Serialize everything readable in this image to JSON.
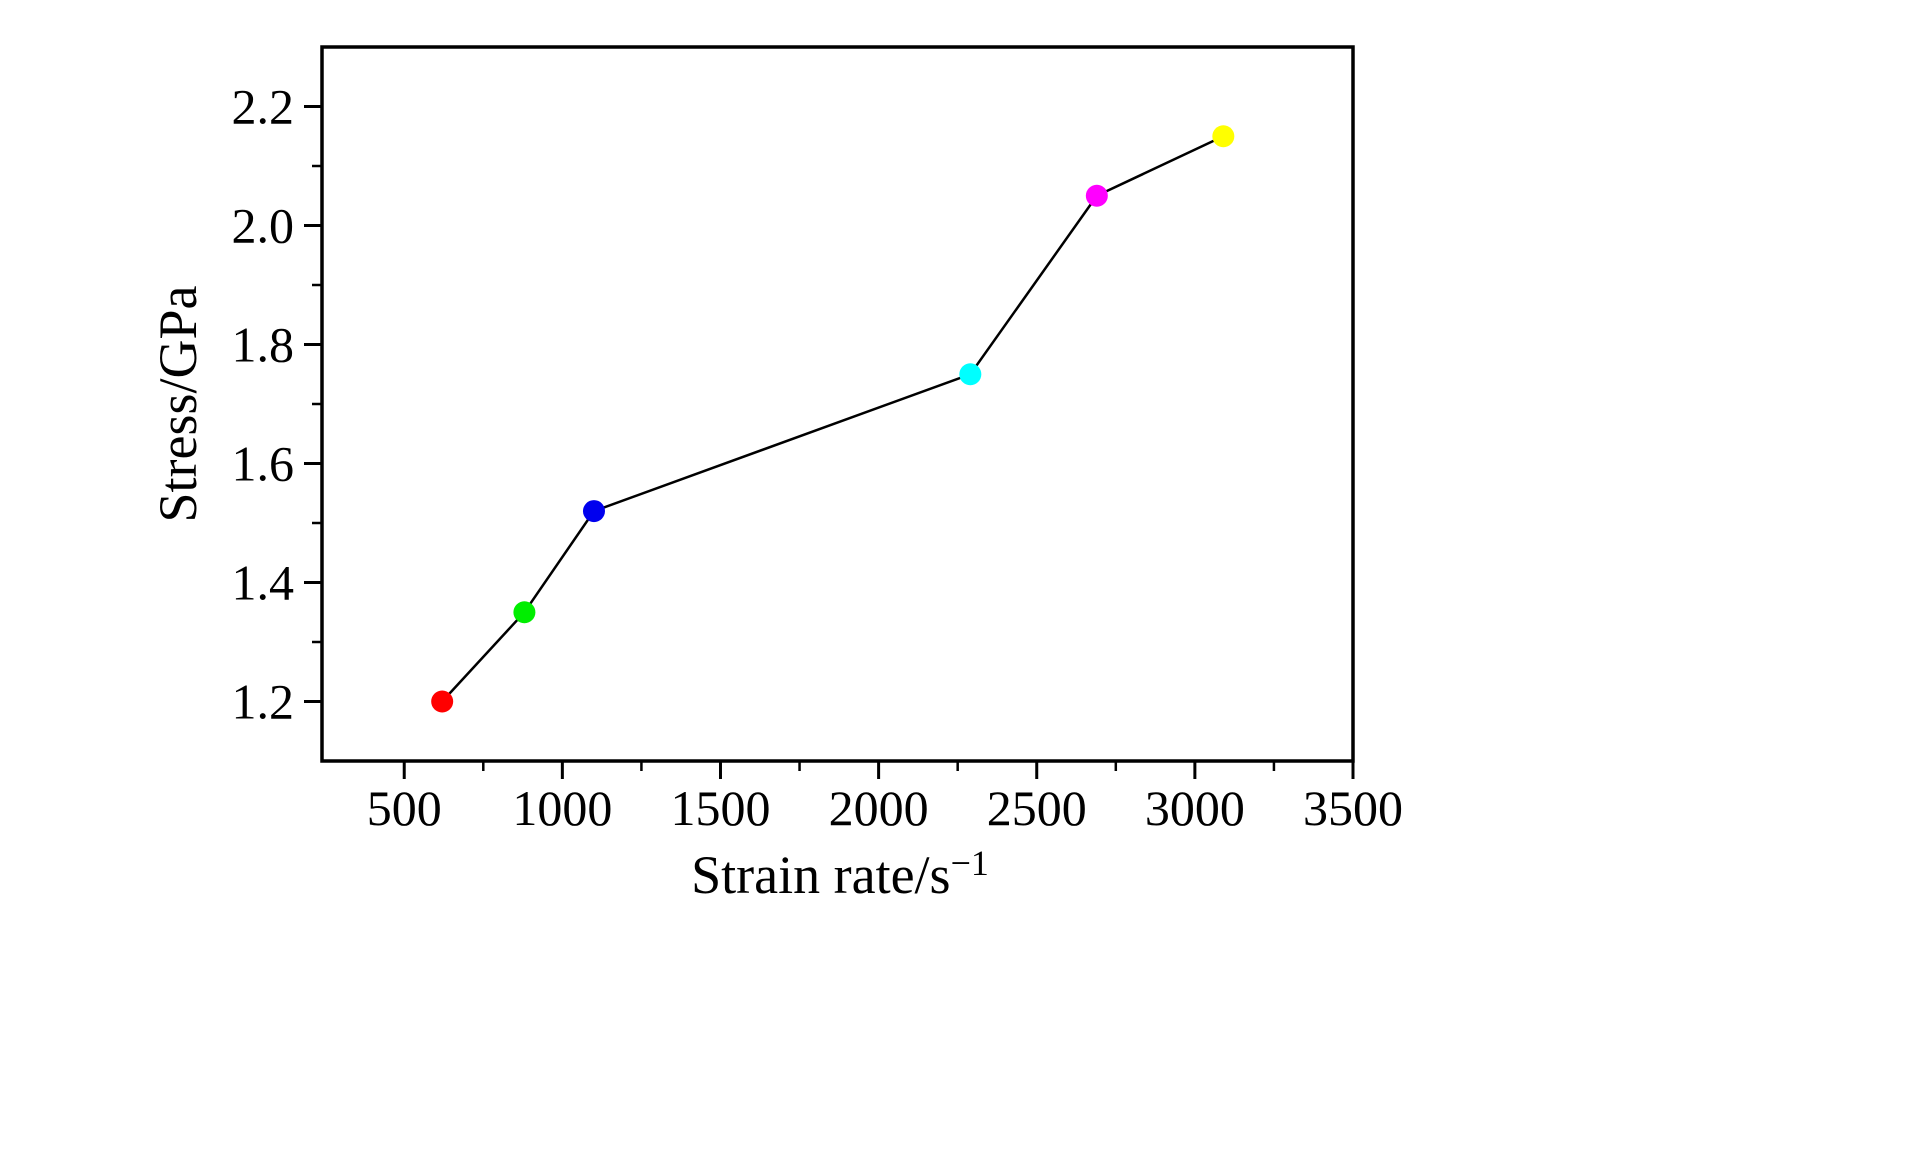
{
  "chart_data": {
    "type": "line",
    "title": "",
    "xlabel": "Strain rate/s⁻¹",
    "xlabel_base": "Strain rate/s",
    "xlabel_sup": "−1",
    "ylabel": "Stress/GPa",
    "xlim": [
      240,
      3500
    ],
    "ylim": [
      1.1,
      2.3
    ],
    "grid": false,
    "legend": "none",
    "x_major_ticks": [
      500,
      1000,
      1500,
      2000,
      2500,
      3000,
      3500
    ],
    "x_minor_ticks": [
      750,
      1250,
      1750,
      2250,
      2750,
      3250
    ],
    "y_major_ticks": [
      1.2,
      1.4,
      1.6,
      1.8,
      2.0,
      2.2
    ],
    "y_tick_labels": [
      "1.2",
      "1.4",
      "1.6",
      "1.8",
      "2.0",
      "2.2"
    ],
    "y_minor_ticks": [
      1.3,
      1.5,
      1.7,
      1.9,
      2.1
    ],
    "line_color": "#000000",
    "axis_color": "#000000",
    "background_color": "#ffffff",
    "points": [
      {
        "x": 620,
        "y": 1.2,
        "color": "#ff0000",
        "color_name": "red"
      },
      {
        "x": 880,
        "y": 1.35,
        "color": "#00ee00",
        "color_name": "green"
      },
      {
        "x": 1100,
        "y": 1.52,
        "color": "#0000ee",
        "color_name": "blue"
      },
      {
        "x": 2290,
        "y": 1.75,
        "color": "#00ffff",
        "color_name": "cyan"
      },
      {
        "x": 2690,
        "y": 2.05,
        "color": "#ff00ff",
        "color_name": "magenta"
      },
      {
        "x": 3090,
        "y": 2.15,
        "color": "#ffff00",
        "color_name": "yellow"
      }
    ]
  }
}
